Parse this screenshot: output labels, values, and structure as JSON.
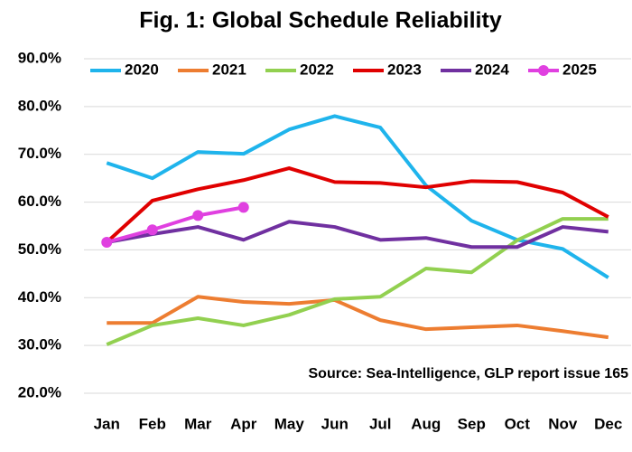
{
  "chart_data": {
    "type": "line",
    "title": "Fig. 1: Global Schedule Reliability",
    "annotation": "Source: Sea-Intelligence, GLP report issue 165",
    "categories": [
      "Jan",
      "Feb",
      "Mar",
      "Apr",
      "May",
      "Jun",
      "Jul",
      "Aug",
      "Sep",
      "Oct",
      "Nov",
      "Dec"
    ],
    "series": [
      {
        "name": "2020",
        "color": "#1fb4ec",
        "values": [
          68.2,
          65,
          70.5,
          70.1,
          75.2,
          78,
          75.6,
          63.5,
          56.1,
          52.1,
          50.2,
          44.2
        ]
      },
      {
        "name": "2021",
        "color": "#ed7d31",
        "values": [
          34.7,
          34.7,
          40.2,
          39.1,
          38.7,
          39.5,
          35.3,
          33.4,
          33.8,
          34.2,
          33,
          31.7
        ]
      },
      {
        "name": "2022",
        "color": "#92d050",
        "values": [
          30.2,
          34.2,
          35.7,
          34.2,
          36.4,
          39.7,
          40.2,
          46.1,
          45.3,
          52,
          56.5,
          56.5
        ]
      },
      {
        "name": "2023",
        "color": "#e00000",
        "values": [
          51.6,
          60.3,
          62.7,
          64.6,
          67.1,
          64.2,
          64,
          63.1,
          64.4,
          64.2,
          62,
          56.9
        ]
      },
      {
        "name": "2024",
        "color": "#7030a0",
        "values": [
          51.6,
          53.3,
          54.8,
          52.1,
          55.9,
          54.8,
          52.1,
          52.5,
          50.6,
          50.6,
          54.8,
          53.8
        ]
      },
      {
        "name": "2025",
        "color": "#e040e0",
        "marker": "circle",
        "values": [
          51.6,
          54.2,
          57.2,
          58.9,
          null,
          null,
          null,
          null,
          null,
          null,
          null,
          null
        ]
      }
    ],
    "ylim": [
      20,
      90
    ],
    "yticks": [
      {
        "value": 20,
        "label": "20.0%"
      },
      {
        "value": 30,
        "label": "30.0%"
      },
      {
        "value": 40,
        "label": "40.0%"
      },
      {
        "value": 50,
        "label": "50.0%"
      },
      {
        "value": 60,
        "label": "60.0%"
      },
      {
        "value": 70,
        "label": "70.0%"
      },
      {
        "value": 80,
        "label": "80.0%"
      },
      {
        "value": 90,
        "label": "90.0%"
      }
    ],
    "grid": true,
    "legend": "top"
  }
}
